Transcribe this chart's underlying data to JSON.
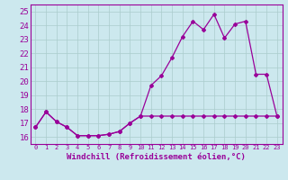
{
  "xlabel": "Windchill (Refroidissement éolien,°C)",
  "xlim": [
    -0.5,
    23.5
  ],
  "ylim": [
    15.5,
    25.5
  ],
  "yticks": [
    16,
    17,
    18,
    19,
    20,
    21,
    22,
    23,
    24,
    25
  ],
  "xticks": [
    0,
    1,
    2,
    3,
    4,
    5,
    6,
    7,
    8,
    9,
    10,
    11,
    12,
    13,
    14,
    15,
    16,
    17,
    18,
    19,
    20,
    21,
    22,
    23
  ],
  "bg_color": "#cce8ee",
  "grid_color": "#aacccc",
  "line_color": "#990099",
  "line1_x": [
    0,
    1,
    2,
    3,
    4,
    5,
    6,
    7,
    8,
    9,
    10,
    11,
    12,
    13,
    14,
    15,
    16,
    17,
    18,
    19,
    20,
    21,
    22,
    23
  ],
  "line1_y": [
    16.7,
    17.8,
    17.1,
    16.7,
    16.1,
    16.1,
    16.1,
    16.2,
    16.4,
    17.0,
    17.5,
    19.7,
    20.4,
    21.7,
    23.2,
    24.3,
    23.7,
    24.8,
    23.1,
    24.1,
    24.3,
    20.5,
    20.5,
    17.5
  ],
  "line2_x": [
    0,
    1,
    2,
    3,
    4,
    5,
    6,
    7,
    8,
    9,
    10,
    11,
    12,
    13,
    14,
    15,
    16,
    17,
    18,
    19,
    20,
    21,
    22,
    23
  ],
  "line2_y": [
    16.7,
    17.8,
    17.1,
    16.7,
    16.1,
    16.1,
    16.1,
    16.2,
    16.4,
    17.0,
    17.5,
    17.5,
    17.5,
    17.5,
    17.5,
    17.5,
    17.5,
    17.5,
    17.5,
    17.5,
    17.5,
    17.5,
    17.5,
    17.5
  ]
}
